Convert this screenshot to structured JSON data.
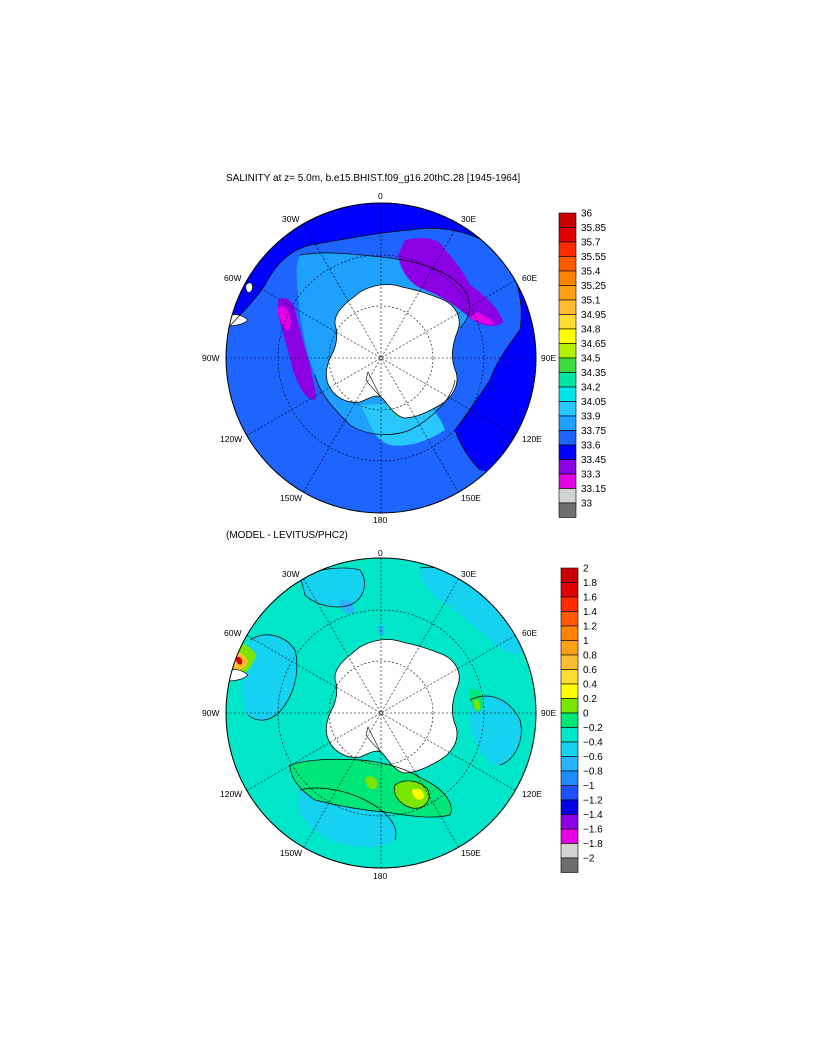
{
  "map1": {
    "title": "SALINITY at z=   5.0m, b.e15.BHIST.f09_g16.20thC.28 [1945-1964]",
    "lon_labels": {
      "0": "0",
      "30E": "30E",
      "60E": "60E",
      "90E": "90E",
      "120E": "120E",
      "150E": "150E",
      "180": "180",
      "150W": "150W",
      "120W": "120W",
      "90W": "90W",
      "60W": "60W",
      "30W": "30W"
    },
    "colorbar": {
      "labels": [
        "36",
        "35.85",
        "35.7",
        "35.55",
        "35.4",
        "35.25",
        "35.1",
        "34.95",
        "34.8",
        "34.65",
        "34.5",
        "34.35",
        "34.2",
        "34.05",
        "33.9",
        "33.75",
        "33.6",
        "33.45",
        "33.3",
        "33.15",
        "33"
      ],
      "colors": [
        "#c80000",
        "#e00000",
        "#ff2a00",
        "#ff5a00",
        "#ff8200",
        "#ffa014",
        "#ffbe32",
        "#ffdc32",
        "#ffff00",
        "#b4f000",
        "#3cdc3c",
        "#00e6a0",
        "#00e6e6",
        "#28c8ff",
        "#1ea0ff",
        "#1e64ff",
        "#0000ff",
        "#8c00e6",
        "#e600e6",
        "#d2d2d2",
        "#6e6e6e"
      ]
    }
  },
  "map2": {
    "title": "(MODEL - LEVITUS/PHC2)",
    "lon_labels": {
      "0": "0",
      "30E": "30E",
      "60E": "60E",
      "90E": "90E",
      "120E": "120E",
      "150E": "150E",
      "180": "180",
      "150W": "150W",
      "120W": "120W",
      "90W": "90W",
      "60W": "60W",
      "30W": "30W"
    },
    "colorbar": {
      "labels": [
        "2",
        "1.8",
        "1.6",
        "1.4",
        "1.2",
        "1",
        "0.8",
        "0.6",
        "0.4",
        "0.2",
        "0",
        "−0.2",
        "−0.4",
        "−0.6",
        "−0.8",
        "−1",
        "−1.2",
        "−1.4",
        "−1.6",
        "−1.8",
        "−2"
      ],
      "colors": [
        "#c80000",
        "#e00000",
        "#ff2a00",
        "#ff5a00",
        "#ff8200",
        "#ffa014",
        "#ffbe32",
        "#ffdc32",
        "#ffff00",
        "#78e600",
        "#00e678",
        "#00e6c8",
        "#14d2f0",
        "#28b4ff",
        "#1e8cff",
        "#1e50ff",
        "#0000e6",
        "#8c00e6",
        "#e600e6",
        "#d2d2d2",
        "#6e6e6e"
      ]
    }
  }
}
